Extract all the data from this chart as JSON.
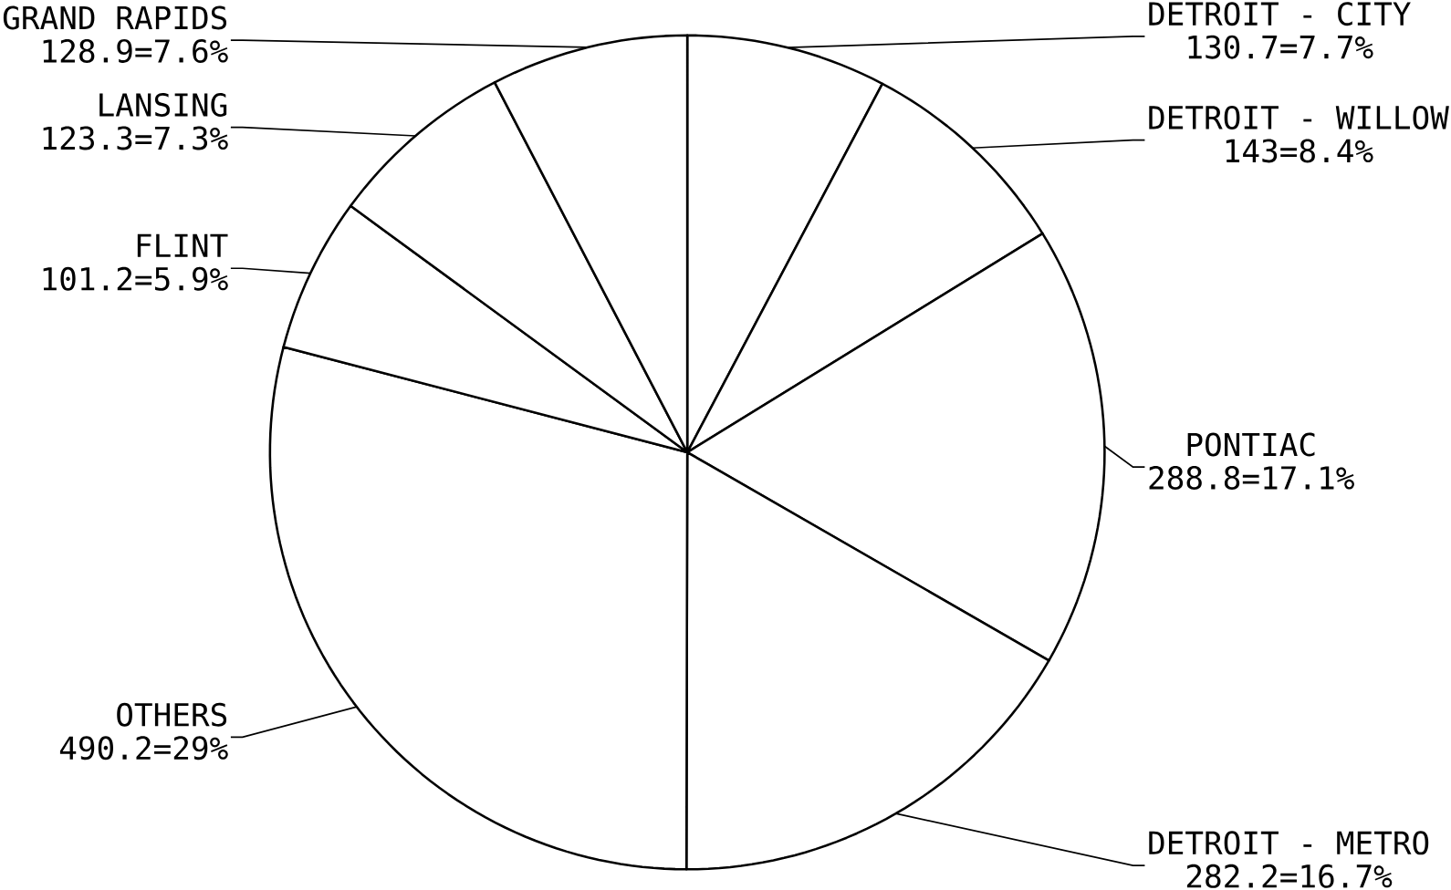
{
  "chart_data": {
    "type": "pie",
    "categories": [
      "DETROIT - CITY",
      "DETROIT - WILLOW",
      "PONTIAC",
      "DETROIT - METRO",
      "OTHERS",
      "FLINT",
      "LANSING",
      "GRAND RAPIDS"
    ],
    "values": [
      130.7,
      143,
      288.8,
      282.2,
      490.2,
      101.2,
      123.3,
      128.9
    ],
    "value_labels": [
      "130.7=7.7%",
      "143=8.4%",
      "288.8=17.1%",
      "282.2=16.7%",
      "490.2=29%",
      "101.2=5.9%",
      "123.3=7.3%",
      "128.9=7.6%"
    ],
    "colors": [
      "#ffffff",
      "#ffffff",
      "#ffffff",
      "#ffffff",
      "#ffffff",
      "#ffffff",
      "#ffffff",
      "#ffffff"
    ]
  }
}
